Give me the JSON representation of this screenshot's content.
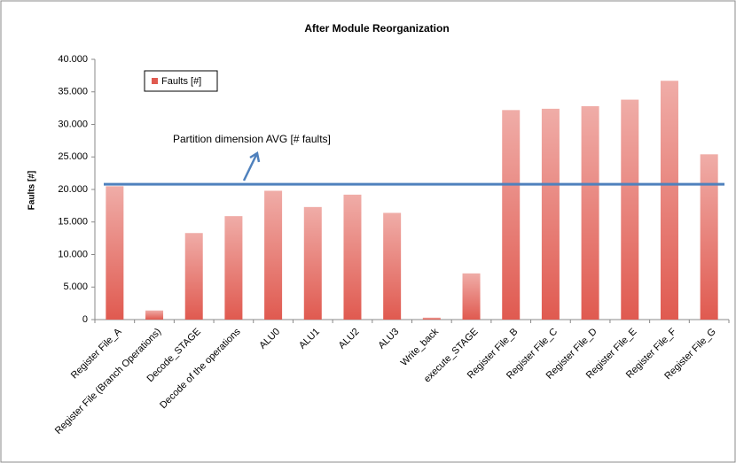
{
  "chart_data": {
    "type": "bar",
    "title": "After Module Reorganization",
    "y_label": "Faults [#]",
    "categories": [
      "Register File_A",
      "Register File (Branch Operations)",
      "Decode_STAGE",
      "Decode of the operations",
      "ALU0",
      "ALU1",
      "ALU2",
      "ALU3",
      "Write_back",
      "execute_STAGE",
      "Register File_B",
      "Register File_C",
      "Register File_D",
      "Register File_E",
      "Register File_F",
      "Register File_G"
    ],
    "series": [
      {
        "name": "Faults [#]",
        "color": "#e05a50",
        "values": [
          20500,
          1400,
          13300,
          15900,
          19800,
          17300,
          19200,
          16400,
          300,
          7100,
          32200,
          32400,
          32800,
          33800,
          36700,
          25400
        ]
      }
    ],
    "ylim": [
      0,
      40000
    ],
    "yticks": [
      0,
      {
        "value": 5000,
        "label": "5.000"
      },
      {
        "value": 10000,
        "label": "10.000"
      },
      {
        "value": 15000,
        "label": "15.000"
      },
      {
        "value": 20000,
        "label": "20.000"
      },
      {
        "value": 25000,
        "label": "25.000"
      },
      {
        "value": 30000,
        "label": "30.000"
      },
      {
        "value": 35000,
        "label": "35.000"
      },
      {
        "value": 40000,
        "label": "40.000"
      }
    ],
    "grid": false,
    "legend": "upper left",
    "average_line": {
      "label": "Partition dimension AVG [# faults]",
      "value": 20800,
      "color": "#4f81bd"
    }
  }
}
